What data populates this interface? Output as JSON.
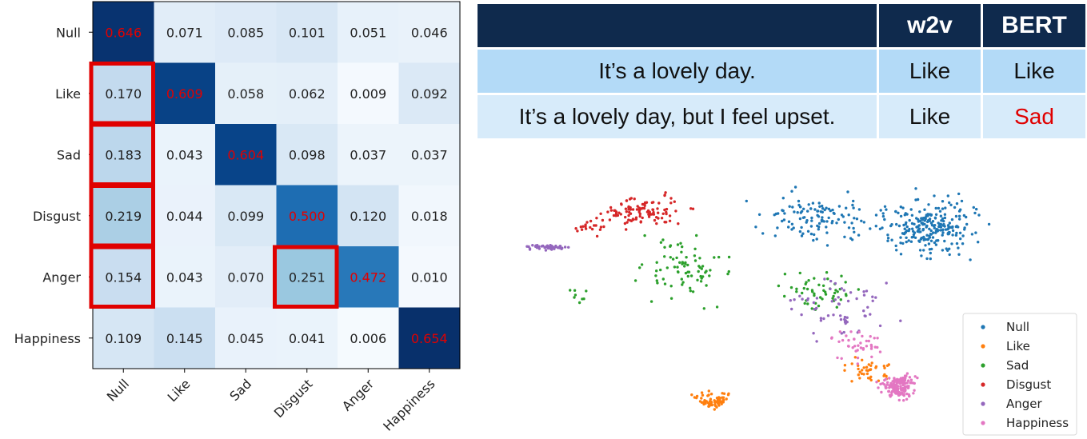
{
  "chart_data": [
    {
      "type": "heatmap",
      "title": "",
      "xlabel": "",
      "ylabel": "",
      "x_categories": [
        "Null",
        "Like",
        "Sad",
        "Disgust",
        "Anger",
        "Happiness"
      ],
      "y_categories": [
        "Null",
        "Like",
        "Sad",
        "Disgust",
        "Anger",
        "Happiness"
      ],
      "values": [
        [
          0.646,
          0.071,
          0.085,
          0.101,
          0.051,
          0.046
        ],
        [
          0.17,
          0.609,
          0.058,
          0.062,
          0.009,
          0.092
        ],
        [
          0.183,
          0.043,
          0.604,
          0.098,
          0.037,
          0.037
        ],
        [
          0.219,
          0.044,
          0.099,
          0.5,
          0.12,
          0.018
        ],
        [
          0.154,
          0.043,
          0.07,
          0.251,
          0.472,
          0.01
        ],
        [
          0.109,
          0.145,
          0.045,
          0.041,
          0.006,
          0.654
        ]
      ],
      "value_labels": [
        [
          "0.646",
          "0.071",
          "0.085",
          "0.101",
          "0.051",
          "0.046"
        ],
        [
          "0.170",
          "0.609",
          "0.058",
          "0.062",
          "0.009",
          "0.092"
        ],
        [
          "0.183",
          "0.043",
          "0.604",
          "0.098",
          "0.037",
          "0.037"
        ],
        [
          "0.219",
          "0.044",
          "0.099",
          "0.500",
          "0.120",
          "0.018"
        ],
        [
          "0.154",
          "0.043",
          "0.070",
          "0.251",
          "0.472",
          "0.010"
        ],
        [
          "0.109",
          "0.145",
          "0.045",
          "0.041",
          "0.006",
          "0.654"
        ]
      ],
      "colormap": "Blues",
      "diagonal_label_color": "#e00000",
      "highlight_color": "#e00000",
      "highlighted_cells": [
        [
          1,
          0
        ],
        [
          2,
          0
        ],
        [
          3,
          0
        ],
        [
          4,
          0
        ],
        [
          4,
          3
        ]
      ],
      "x_tick_rotation_deg": 45
    },
    {
      "type": "table",
      "columns": [
        "",
        "w2v",
        "BERT"
      ],
      "rows": [
        [
          "It’s a lovely day.",
          "Like",
          "Like"
        ],
        [
          "It’s a lovely day, but I feel upset.",
          "Like",
          "Sad"
        ]
      ],
      "highlighted_cell": [
        1,
        2
      ],
      "highlight_color": "#e00000",
      "header_color": "#0f2a4d"
    },
    {
      "type": "scatter",
      "title": "",
      "xlabel": "",
      "ylabel": "",
      "axes_visible": false,
      "legend_position": "bottom-right",
      "series": [
        {
          "name": "Null",
          "color": "#1f77b4"
        },
        {
          "name": "Like",
          "color": "#ff7f0e"
        },
        {
          "name": "Sad",
          "color": "#2ca02c"
        },
        {
          "name": "Disgust",
          "color": "#d62728"
        },
        {
          "name": "Anger",
          "color": "#9467bd"
        },
        {
          "name": "Happiness",
          "color": "#e377c2"
        }
      ]
    }
  ]
}
